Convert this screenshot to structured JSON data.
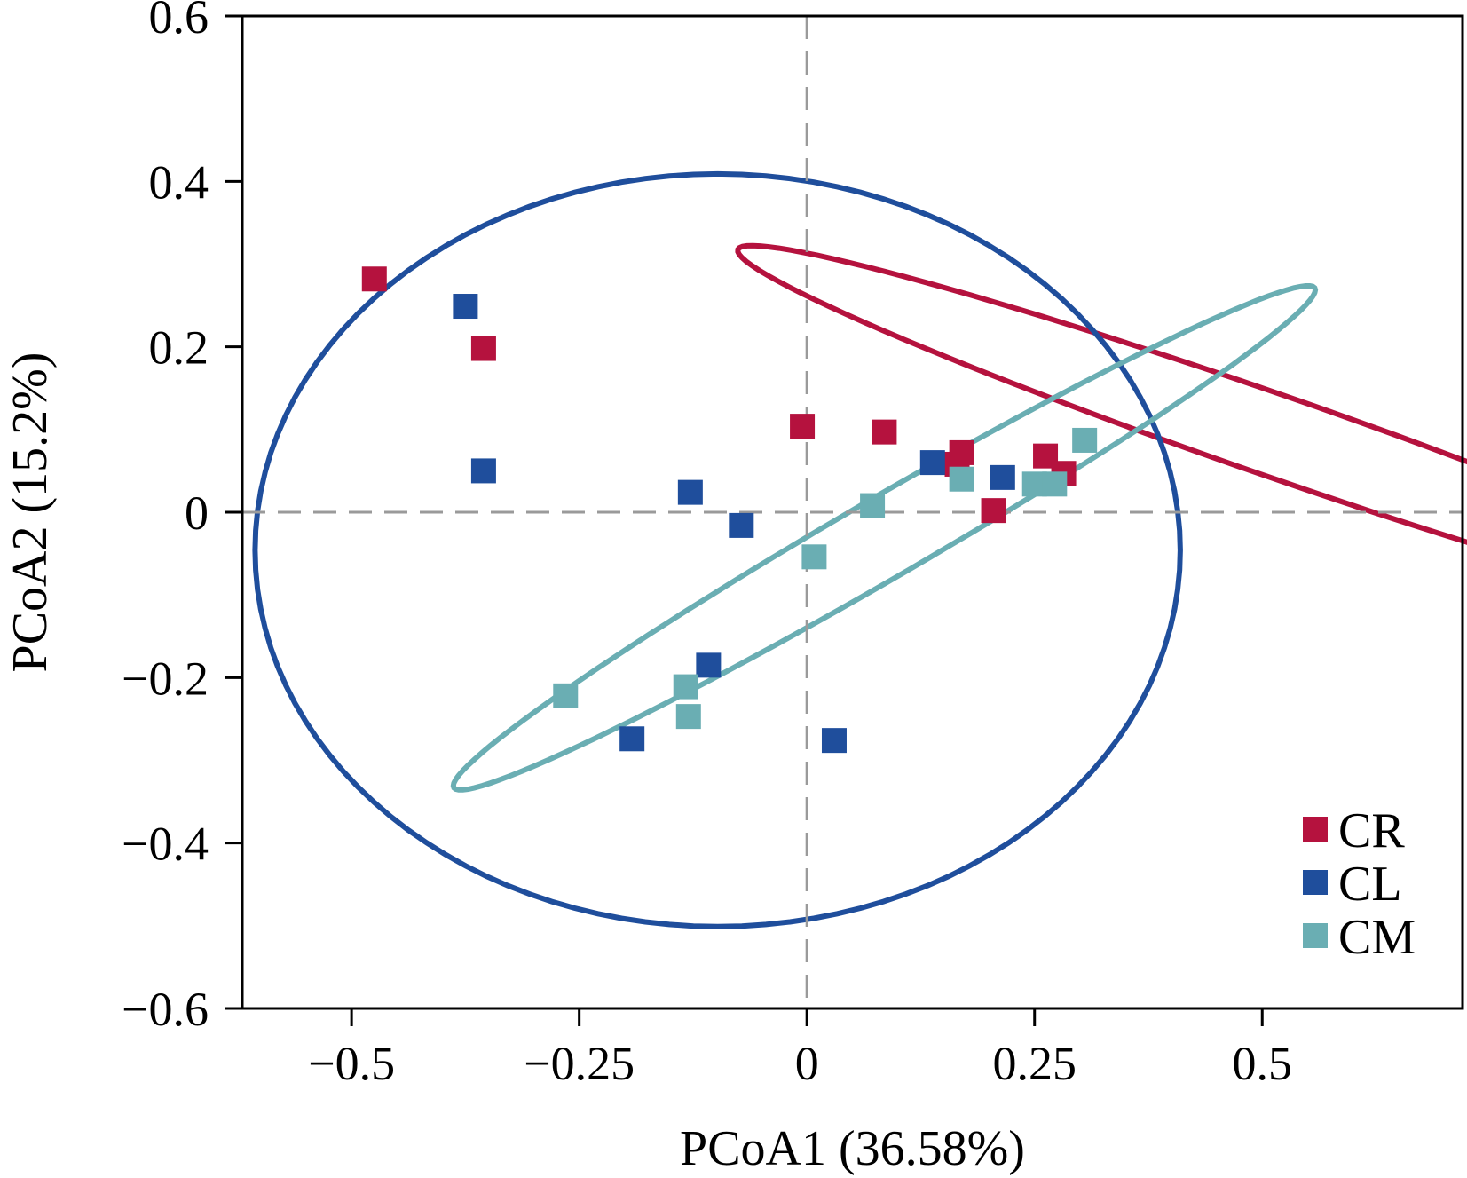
{
  "chart_data": {
    "type": "scatter",
    "title": "",
    "xlabel": "PCoA1 (36.58%)",
    "ylabel": "PCoA2 (15.2%)",
    "xlim": [
      -0.62,
      0.72
    ],
    "ylim": [
      -0.6,
      0.6
    ],
    "xticks": [
      -0.5,
      -0.25,
      0,
      0.25,
      0.5
    ],
    "xtick_labels": [
      "−0.5",
      "−0.25",
      "0",
      "0.25",
      "0.5"
    ],
    "yticks": [
      -0.6,
      -0.4,
      -0.2,
      0,
      0.2,
      0.4,
      0.6
    ],
    "ytick_labels": [
      "−0.6",
      "−0.4",
      "−0.2",
      "0",
      "0.2",
      "0.4",
      "0.6"
    ],
    "reference_lines": {
      "x": 0,
      "y": 0,
      "style": "dashed",
      "color": "#9a9a9a"
    },
    "grid": false,
    "legend_position": "bottom-right",
    "series": [
      {
        "name": "CR",
        "color": "#b5123e",
        "points": [
          [
            -0.475,
            0.282
          ],
          [
            -0.355,
            0.198
          ],
          [
            -0.005,
            0.104
          ],
          [
            0.085,
            0.097
          ],
          [
            0.17,
            0.072
          ],
          [
            0.165,
            0.058
          ],
          [
            0.262,
            0.068
          ],
          [
            0.282,
            0.047
          ],
          [
            0.205,
            0.002
          ]
        ],
        "ellipse": {
          "cx": 0.51,
          "cy": 0.094,
          "rx": 0.627,
          "ry": 0.049,
          "angle_deg": -20.9
        }
      },
      {
        "name": "CL",
        "color": "#1f4e9c",
        "points": [
          [
            -0.375,
            0.249
          ],
          [
            -0.355,
            0.05
          ],
          [
            -0.128,
            0.024
          ],
          [
            -0.072,
            -0.016
          ],
          [
            0.138,
            0.06
          ],
          [
            0.215,
            0.042
          ],
          [
            -0.108,
            -0.185
          ],
          [
            -0.192,
            -0.274
          ],
          [
            0.03,
            -0.276
          ]
        ],
        "ellipse": {
          "cx": -0.098,
          "cy": -0.046,
          "rx": 0.508,
          "ry": 0.455,
          "angle_deg": 0
        }
      },
      {
        "name": "CM",
        "color": "#6aaeb3",
        "points": [
          [
            0.305,
            0.087
          ],
          [
            0.17,
            0.04
          ],
          [
            0.25,
            0.034
          ],
          [
            0.272,
            0.034
          ],
          [
            0.072,
            0.008
          ],
          [
            0.008,
            -0.054
          ],
          [
            -0.265,
            -0.222
          ],
          [
            -0.133,
            -0.211
          ],
          [
            -0.13,
            -0.247
          ]
        ],
        "ellipse": {
          "cx": 0.085,
          "cy": -0.031,
          "rx": 0.561,
          "ry": 0.047,
          "angle_deg": 32.6
        }
      }
    ]
  }
}
